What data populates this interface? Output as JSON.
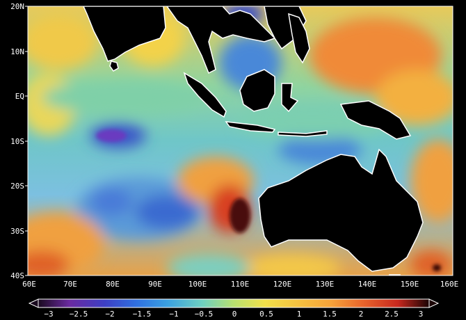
{
  "map": {
    "lat_labels": [
      "20N",
      "10N",
      "EQ",
      "10S",
      "20S",
      "30S",
      "40S"
    ],
    "lon_labels": [
      "60E",
      "70E",
      "80E",
      "90E",
      "100E",
      "110E",
      "120E",
      "130E",
      "140E",
      "150E",
      "160E"
    ],
    "extent": {
      "lon_min": 60,
      "lon_max": 160,
      "lat_min": -40,
      "lat_max": 20
    }
  },
  "colorbar": {
    "tick_labels": [
      "-3",
      "-2.5",
      "-2",
      "-1.5",
      "-1",
      "-0.5",
      "0",
      "0.5",
      "1",
      "1.5",
      "2",
      "2.5",
      "3"
    ],
    "colors": [
      "#1a0a1f",
      "#6a2aa0",
      "#3d3fc4",
      "#2f6fe0",
      "#3aa0e0",
      "#6fd0c0",
      "#b8e070",
      "#f2e04a",
      "#f5a23a",
      "#e8652c",
      "#c8281e",
      "#6a0c0c",
      "#1a0404"
    ]
  }
}
